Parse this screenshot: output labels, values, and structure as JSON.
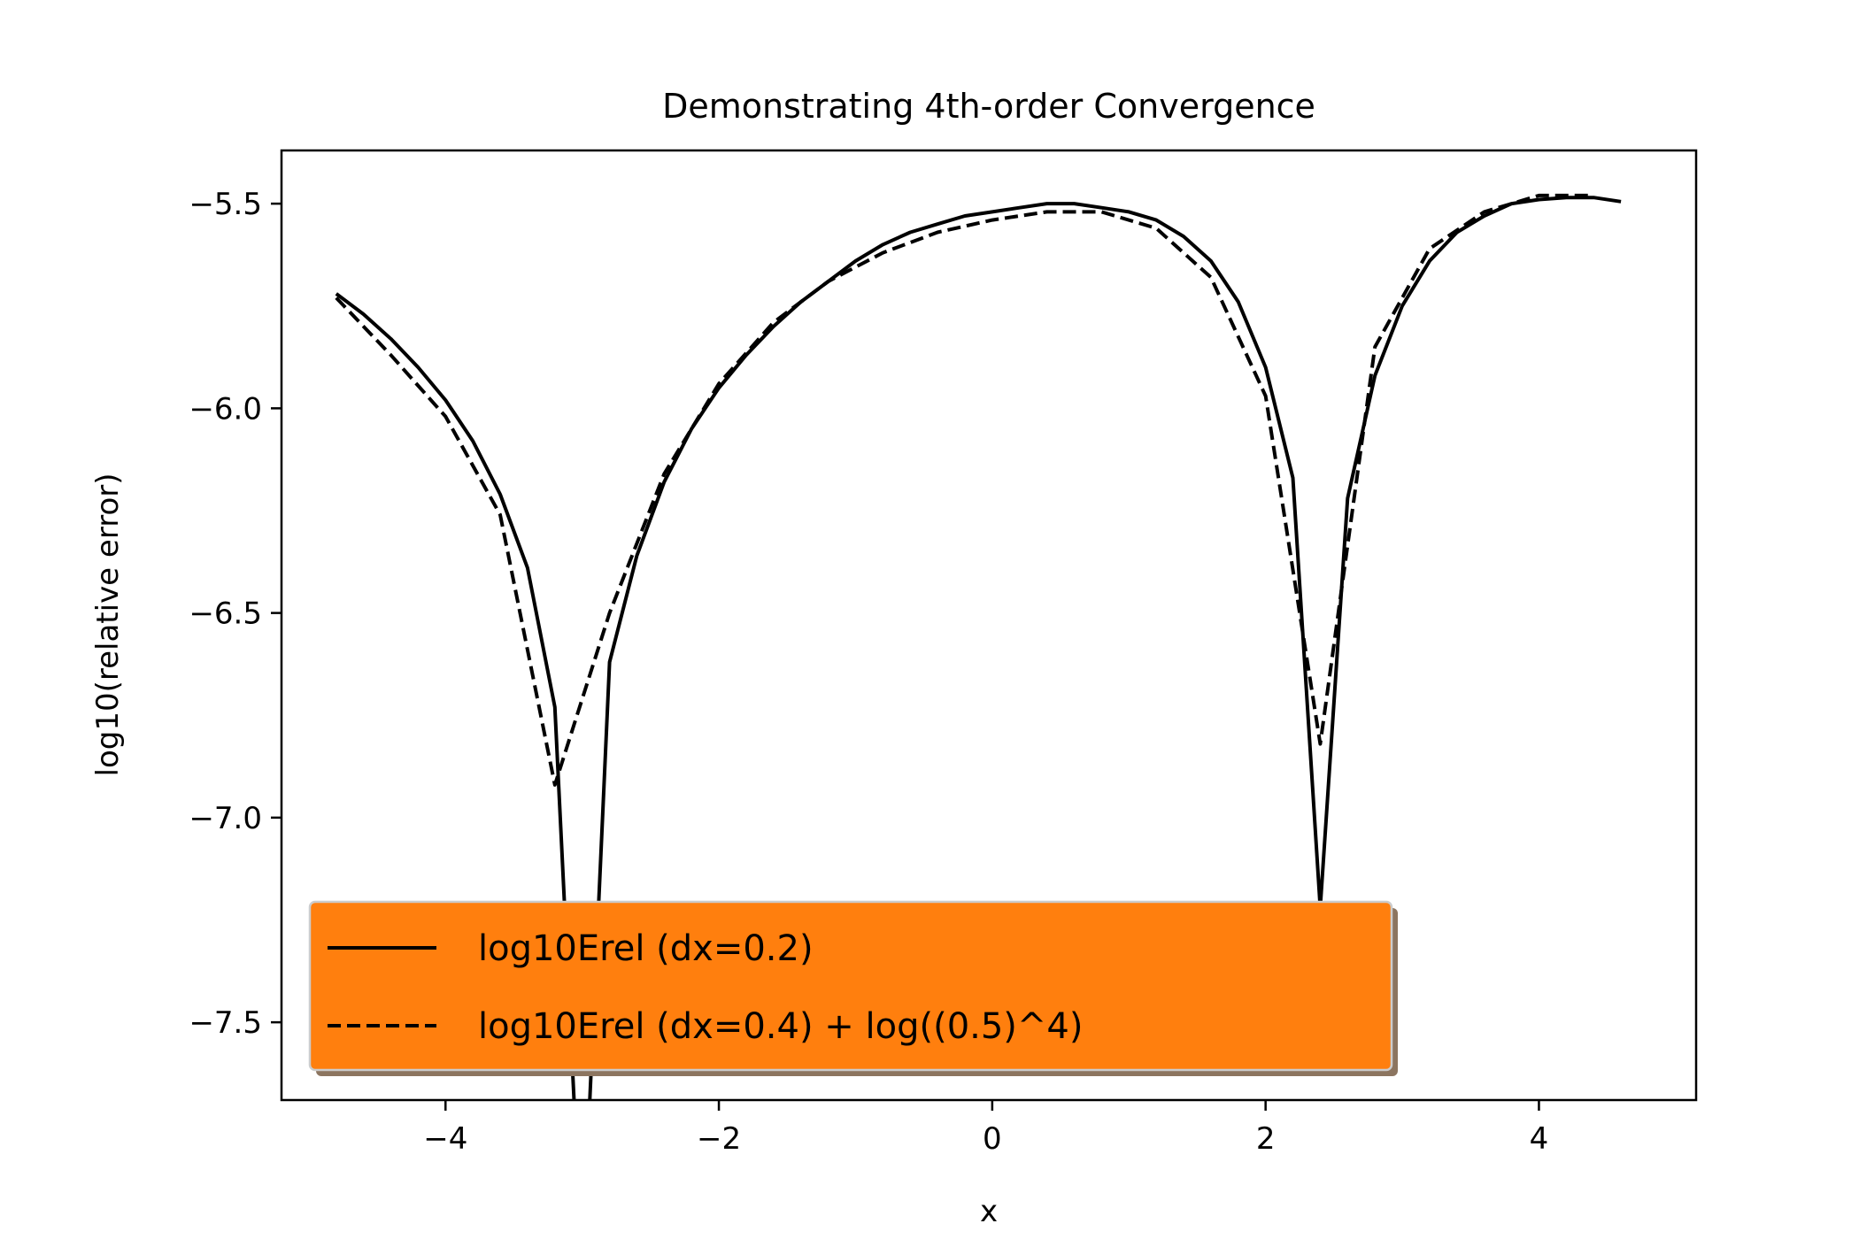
{
  "chart_data": {
    "type": "line",
    "title": "Demonstrating 4th-order Convergence",
    "xlabel": "x",
    "ylabel": "log10(relative error)",
    "xlim": [
      -5.2,
      5.15
    ],
    "ylim": [
      -7.69,
      -5.37
    ],
    "xticks": [
      -4,
      -2,
      0,
      2,
      4
    ],
    "yticks": [
      -5.5,
      -6.0,
      -6.5,
      -7.0,
      -7.5
    ],
    "xtick_labels": [
      "−4",
      "−2",
      "0",
      "2",
      "4"
    ],
    "ytick_labels": [
      "−5.5",
      "−6.0",
      "−6.5",
      "−7.0",
      "−7.5"
    ],
    "grid": false,
    "legend_position": "lower-left",
    "legend_facecolor": "#ff7f0e",
    "series": [
      {
        "name": "log10Erel (dx=0.2)",
        "style": "solid",
        "color": "#000000",
        "x": [
          -4.8,
          -4.6,
          -4.4,
          -4.2,
          -4.0,
          -3.8,
          -3.6,
          -3.4,
          -3.2,
          -3.0,
          -2.8,
          -2.6,
          -2.4,
          -2.2,
          -2.0,
          -1.8,
          -1.6,
          -1.4,
          -1.2,
          -1.0,
          -0.8,
          -0.6,
          -0.4,
          -0.2,
          0.0,
          0.2,
          0.4,
          0.6,
          0.8,
          1.0,
          1.2,
          1.4,
          1.6,
          1.8,
          2.0,
          2.2,
          2.4,
          2.6,
          2.8,
          3.0,
          3.2,
          3.4,
          3.6,
          3.8,
          4.0,
          4.2,
          4.4,
          4.6
        ],
        "y": [
          -5.72,
          -5.77,
          -5.83,
          -5.9,
          -5.98,
          -6.08,
          -6.21,
          -6.39,
          -6.73,
          -8.1,
          -6.62,
          -6.36,
          -6.18,
          -6.05,
          -5.95,
          -5.87,
          -5.8,
          -5.74,
          -5.69,
          -5.64,
          -5.6,
          -5.57,
          -5.55,
          -5.53,
          -5.52,
          -5.51,
          -5.5,
          -5.5,
          -5.51,
          -5.52,
          -5.54,
          -5.58,
          -5.64,
          -5.74,
          -5.9,
          -6.17,
          -7.22,
          -6.22,
          -5.92,
          -5.75,
          -5.64,
          -5.57,
          -5.53,
          -5.5,
          -5.49,
          -5.485,
          -5.485,
          -5.495
        ]
      },
      {
        "name": "log10Erel (dx=0.4) + log((0.5)^4)",
        "style": "dashed",
        "color": "#000000",
        "x": [
          -4.8,
          -4.4,
          -4.0,
          -3.6,
          -3.2,
          -2.8,
          -2.4,
          -2.0,
          -1.6,
          -1.2,
          -0.8,
          -0.4,
          0.0,
          0.4,
          0.8,
          1.2,
          1.6,
          2.0,
          2.4,
          2.8,
          3.2,
          3.6,
          4.0,
          4.4
        ],
        "y": [
          -5.73,
          -5.87,
          -6.02,
          -6.26,
          -6.92,
          -6.5,
          -6.16,
          -5.94,
          -5.79,
          -5.69,
          -5.62,
          -5.57,
          -5.54,
          -5.52,
          -5.52,
          -5.56,
          -5.68,
          -5.97,
          -6.82,
          -5.85,
          -5.61,
          -5.52,
          -5.48,
          -5.48
        ]
      }
    ]
  }
}
